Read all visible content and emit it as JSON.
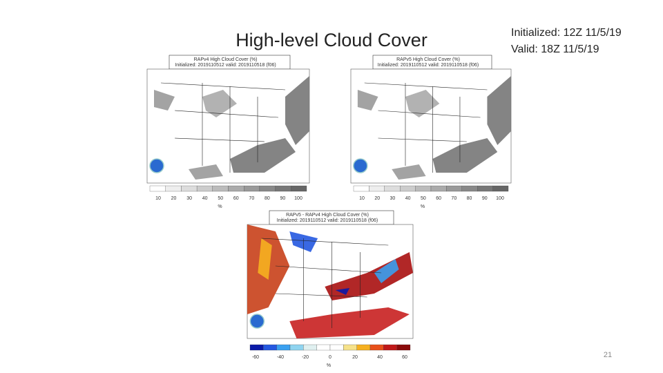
{
  "slide": {
    "title": "High-level Cloud Cover",
    "info": [
      "Initialized: 12Z 11/5/19",
      "Valid: 18Z 11/5/19"
    ],
    "page_number": "21"
  },
  "panels": [
    {
      "title": "RAPv4 High Cloud Cover (%)",
      "subtitle": "Initialized: 2019110512 valid: 2019110518 (f06)",
      "colorbar_labels": [
        "10",
        "20",
        "30",
        "40",
        "50",
        "60",
        "70",
        "80",
        "90",
        "100"
      ],
      "units": "%"
    },
    {
      "title": "RAPv5 High Cloud Cover (%)",
      "subtitle": "Initialized: 2019110512 valid: 2019110518 (f06)",
      "colorbar_labels": [
        "10",
        "20",
        "30",
        "40",
        "50",
        "60",
        "70",
        "80",
        "90",
        "100"
      ],
      "units": "%"
    },
    {
      "title": "RAPv5 - RAPv4 High Cloud Cover (%)",
      "subtitle": "Initialized: 2019110512 valid: 2019110518 (f06)",
      "colorbar_labels": [
        "-60",
        "-40",
        "-20",
        "0",
        "20",
        "40",
        "60"
      ],
      "units": "%"
    }
  ]
}
